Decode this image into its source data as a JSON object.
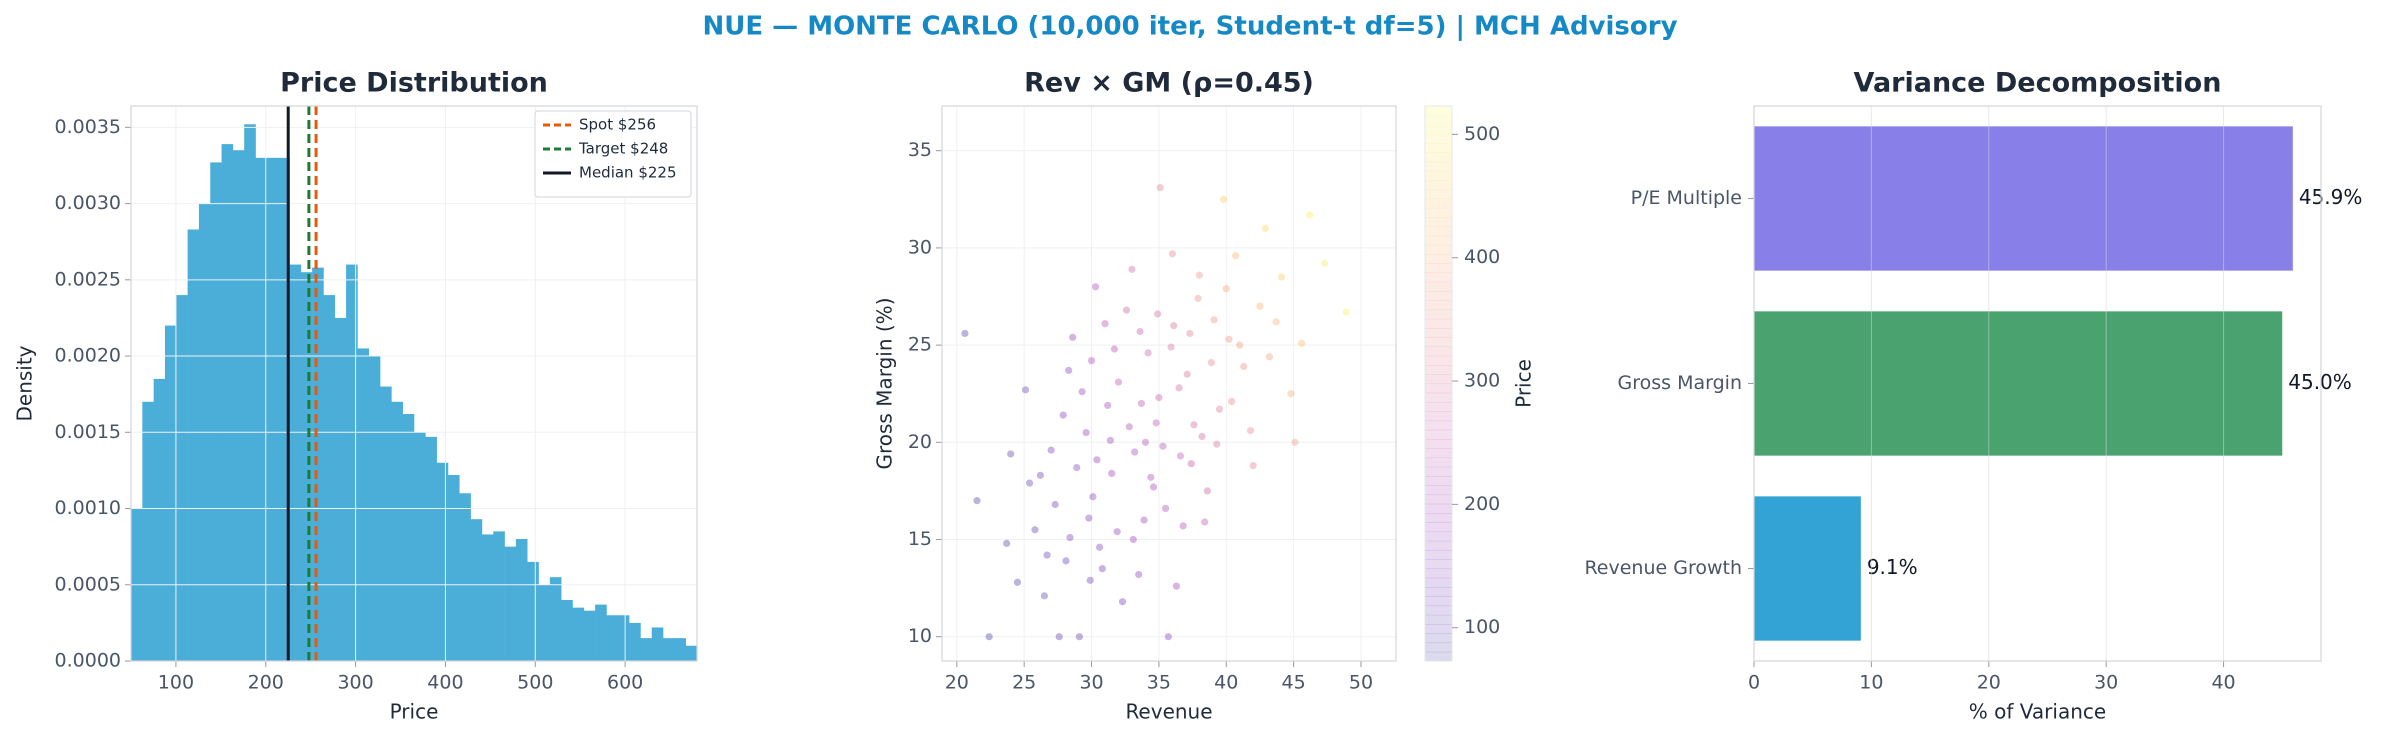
{
  "title": "NUE — MONTE CARLO (10,000 iter, Student-t df=5) | MCH Advisory",
  "chart_data": [
    {
      "type": "histogram",
      "title": "Price Distribution",
      "xlabel": "Price",
      "ylabel": "Density",
      "color": "#4aaed9",
      "grid": true,
      "legend": "upper right",
      "bins": [
        50,
        62.6,
        75.2,
        87.8,
        100.4,
        113,
        125.6,
        138.2,
        150.8,
        163.4,
        176,
        188.6,
        201.2,
        213.8,
        226.4,
        239,
        251.6,
        264.2,
        276.8,
        289.4,
        302,
        314.6,
        327.2,
        339.8,
        352.4,
        365,
        377.6,
        390.2,
        402.8,
        415.4,
        428,
        440.6,
        453.2,
        465.8,
        478.4,
        491,
        503.6,
        516.2,
        528.8,
        541.4,
        554,
        566.6,
        579.2,
        591.8,
        604.4,
        617,
        629.6,
        642.2,
        654.8,
        667.4,
        680
      ],
      "values": [
        0.001,
        0.0017,
        0.00185,
        0.0022,
        0.0024,
        0.00283,
        0.003,
        0.00327,
        0.00339,
        0.00335,
        0.00352,
        0.0033,
        0.0033,
        0.0033,
        0.0026,
        0.00255,
        0.00258,
        0.0024,
        0.00225,
        0.0026,
        0.00205,
        0.002,
        0.0018,
        0.0017,
        0.00162,
        0.0015,
        0.00147,
        0.0013,
        0.00122,
        0.0011,
        0.00093,
        0.00083,
        0.00085,
        0.00075,
        0.0008,
        0.00065,
        0.0005,
        0.00055,
        0.0004,
        0.00035,
        0.00033,
        0.00037,
        0.0003,
        0.0003,
        0.00025,
        0.00015,
        0.00022,
        0.00015,
        0.00015,
        0.0001
      ],
      "lines": [
        {
          "name": "Spot $256",
          "value": 256,
          "color": "#e8590c",
          "style": "dashed"
        },
        {
          "name": "Target $248",
          "value": 248,
          "color": "#1e7b34",
          "style": "dashed"
        },
        {
          "name": "Median $225",
          "value": 225,
          "color": "#111827",
          "style": "solid"
        }
      ],
      "xlim": [
        50,
        680
      ],
      "xticks": [
        100,
        200,
        300,
        400,
        500,
        600
      ],
      "ylim": [
        0,
        0.00364
      ],
      "yticks": [
        {
          "value": 0,
          "label": "0.0000"
        },
        {
          "value": 0.0005,
          "label": "0.0005"
        },
        {
          "value": 0.001,
          "label": "0.0010"
        },
        {
          "value": 0.0015,
          "label": "0.0015"
        },
        {
          "value": 0.002,
          "label": "0.0020"
        },
        {
          "value": 0.0025,
          "label": "0.0025"
        },
        {
          "value": 0.003,
          "label": "0.0030"
        },
        {
          "value": 0.0035,
          "label": "0.0035"
        }
      ]
    },
    {
      "type": "scatter",
      "title": "Rev × GM (ρ=0.45)",
      "xlabel": "Revenue",
      "ylabel": "Gross Margin (%)",
      "colorbar_label": "Price",
      "colormap": "plasma",
      "alpha": 0.3,
      "grid": true,
      "x": [
        33.2,
        30.1,
        36.5,
        28.4,
        40.2,
        34.8,
        31.5,
        38.9,
        26.7,
        42.5,
        35.3,
        29.6,
        37.4,
        32.0,
        44.1,
        27.3,
        33.9,
        39.5,
        30.8,
        36.1,
        24.5,
        41.3,
        34.2,
        28.9,
        31.2,
        37.9,
        45.6,
        25.8,
        33.5,
        38.2,
        29.1,
        35.7,
        22.4,
        40.7,
        32.6,
        27.9,
        36.8,
        43.2,
        30.4,
        34.6,
        39.1,
        26.2,
        31.9,
        47.3,
        35.0,
        28.1,
        33.0,
        41.8,
        23.7,
        37.1,
        30.0,
        36.3,
        42.9,
        29.8,
        34.0,
        25.1,
        38.6,
        32.3,
        40.0,
        27.0,
        35.9,
        31.0,
        44.8,
        21.5,
        33.7,
        37.6,
        29.3,
        39.8,
        26.5,
        34.4,
        48.9,
        30.6,
        36.0,
        28.6,
        42.0,
        32.8,
        35.5,
        38.0,
        24.0,
        31.7,
        43.7,
        27.6,
        34.9,
        40.4,
        29.9,
        37.3,
        33.1,
        46.2,
        25.4,
        36.6,
        31.4,
        39.3,
        28.3,
        35.1,
        41.0,
        30.3,
        20.6,
        38.4,
        33.6,
        45.1
      ],
      "y": [
        19.5,
        17.2,
        22.8,
        15.1,
        25.3,
        21.0,
        18.4,
        24.1,
        14.2,
        27.0,
        19.8,
        20.5,
        18.9,
        23.1,
        28.5,
        16.8,
        16.0,
        21.7,
        13.5,
        26.0,
        12.8,
        23.9,
        24.6,
        18.7,
        21.9,
        27.4,
        25.1,
        15.5,
        13.2,
        20.3,
        10.0,
        10.0,
        10.0,
        29.6,
        26.8,
        21.4,
        15.7,
        24.4,
        19.1,
        17.7,
        26.3,
        18.3,
        15.4,
        29.2,
        22.3,
        13.9,
        28.9,
        20.6,
        14.8,
        23.5,
        24.2,
        12.6,
        31.0,
        16.1,
        20.0,
        22.7,
        17.5,
        11.8,
        27.9,
        19.6,
        24.9,
        26.1,
        22.5,
        17.0,
        22.0,
        20.9,
        22.6,
        32.5,
        12.1,
        18.2,
        26.7,
        14.6,
        29.7,
        25.4,
        18.8,
        20.8,
        16.6,
        28.6,
        19.4,
        24.8,
        26.2,
        10.0,
        26.6,
        22.1,
        12.9,
        25.6,
        15.0,
        31.7,
        17.9,
        19.3,
        20.1,
        19.9,
        23.7,
        33.1,
        25.0,
        28.0,
        25.6,
        15.9,
        25.7,
        20.0
      ],
      "c": [
        205,
        160,
        280,
        130,
        360,
        240,
        180,
        330,
        110,
        410,
        225,
        175,
        240,
        235,
        455,
        125,
        180,
        310,
        130,
        300,
        90,
        350,
        265,
        150,
        200,
        350,
        430,
        105,
        155,
        270,
        100,
        150,
        80,
        420,
        260,
        155,
        215,
        390,
        170,
        200,
        360,
        120,
        160,
        500,
        250,
        115,
        270,
        330,
        95,
        295,
        205,
        180,
        470,
        145,
        220,
        120,
        260,
        135,
        390,
        135,
        290,
        220,
        400,
        85,
        230,
        275,
        175,
        450,
        100,
        205,
        510,
        140,
        330,
        170,
        320,
        215,
        205,
        370,
        100,
        215,
        420,
        105,
        285,
        335,
        125,
        320,
        170,
        505,
        110,
        245,
        190,
        290,
        160,
        330,
        370,
        215,
        85,
        245,
        255,
        380
      ],
      "xlim": [
        18.9,
        52.6
      ],
      "xticks": [
        20,
        25,
        30,
        35,
        40,
        45,
        50
      ],
      "ylim": [
        8.75,
        37.3
      ],
      "yticks": [
        10,
        15,
        20,
        25,
        30,
        35
      ],
      "clim": [
        73,
        523
      ],
      "cticks": [
        100,
        200,
        300,
        400,
        500
      ]
    },
    {
      "type": "barh",
      "title": "Variance Decomposition",
      "xlabel": "% of Variance",
      "grid": true,
      "categories": [
        "Revenue Growth",
        "Gross Margin",
        "P/E Multiple"
      ],
      "values": [
        9.1,
        45.0,
        45.9
      ],
      "value_labels": [
        "9.1%",
        "45.0%",
        "45.9%"
      ],
      "colors": [
        "#33a3d6",
        "#4aa36f",
        "#8880e8"
      ],
      "xlim": [
        0,
        48.3
      ],
      "xticks": [
        0,
        10,
        20,
        30,
        40
      ]
    }
  ]
}
